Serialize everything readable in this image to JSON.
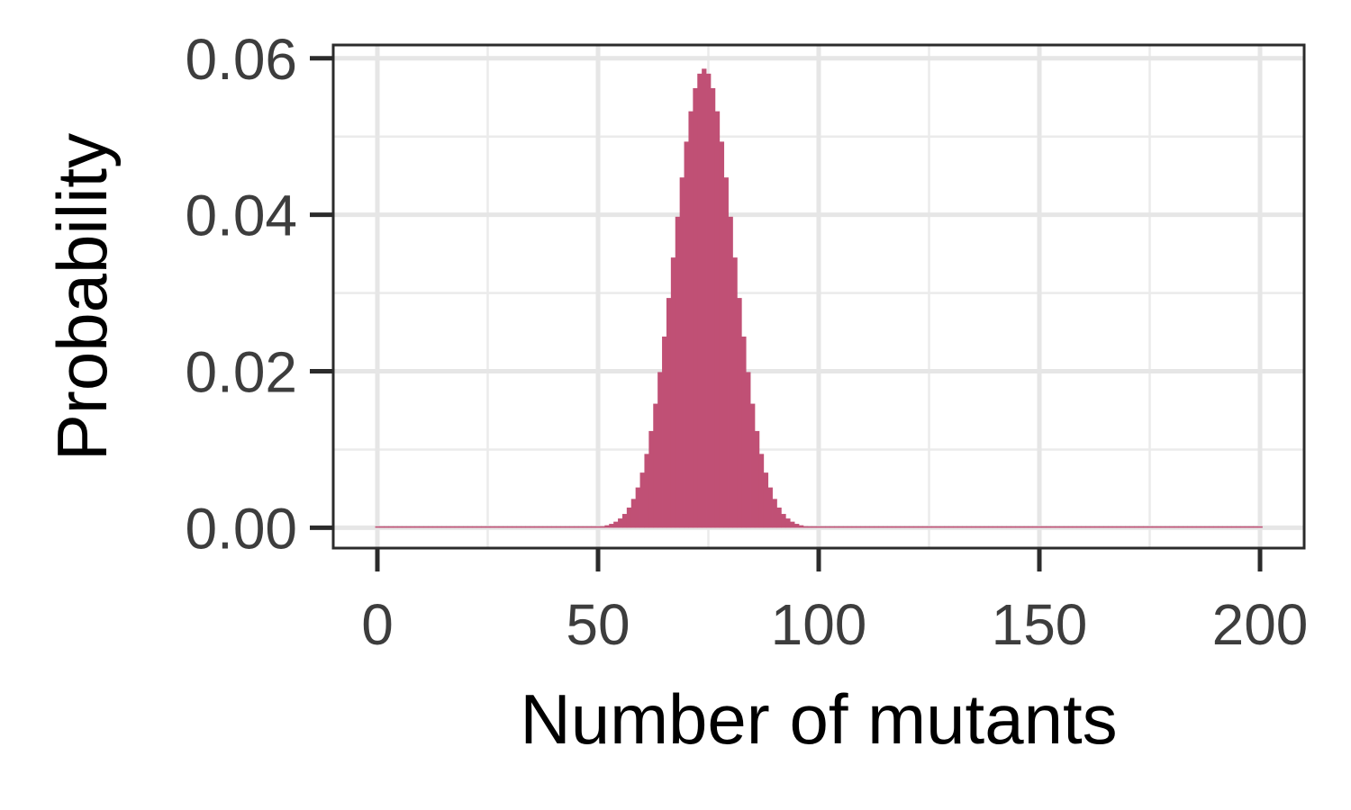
{
  "chart_data": {
    "type": "bar",
    "title": "",
    "xlabel": "Number of mutants",
    "ylabel": "Probability",
    "xlim": [
      -10,
      210
    ],
    "ylim": [
      -0.0026,
      0.0617
    ],
    "x_ticks": [
      0,
      50,
      100,
      150,
      200
    ],
    "x_tick_labels": [
      "0",
      "50",
      "100",
      "150",
      "200"
    ],
    "y_ticks": [
      0,
      0.02,
      0.04,
      0.06
    ],
    "y_tick_labels": [
      "0.00",
      "0.02",
      "0.04",
      "0.06"
    ],
    "grid": true,
    "legend": "none",
    "bar_color": "#c05075",
    "x_min": 0,
    "x_max": 200,
    "distribution": {
      "family": "normal",
      "mean": 74,
      "sd": 6.8
    }
  }
}
